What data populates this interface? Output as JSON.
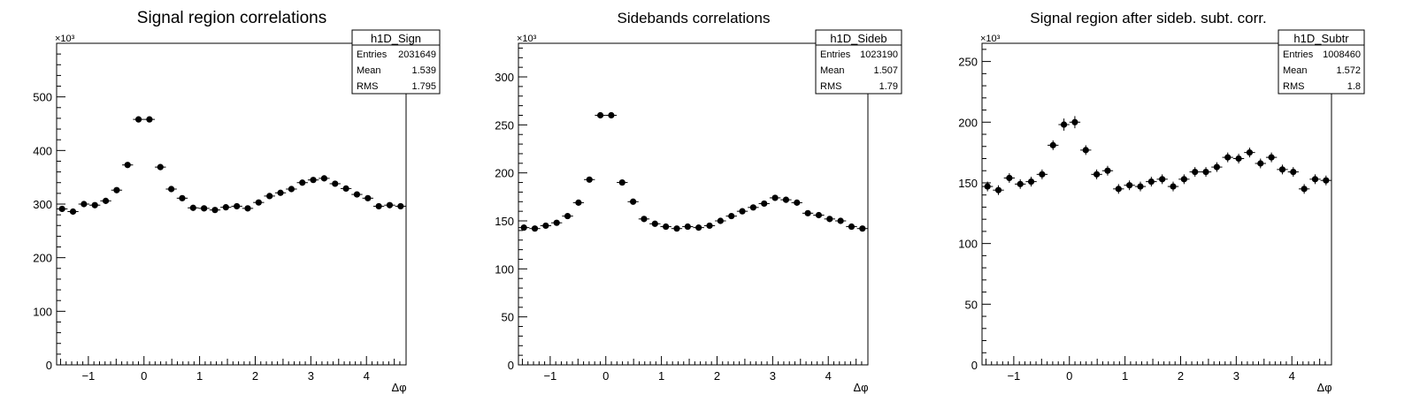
{
  "chart_data": [
    {
      "type": "scatter",
      "title": "Signal region correlations",
      "xlabel": "Δφ",
      "ylabel": "",
      "exponent_label": "×10³",
      "xlim": [
        -1.5708,
        4.7124
      ],
      "ylim": [
        0,
        600
      ],
      "xticks": [
        -1,
        0,
        1,
        2,
        3,
        4
      ],
      "yticks": [
        0,
        100,
        200,
        300,
        400,
        500
      ],
      "stats": {
        "name": "h1D_Sign",
        "rows": [
          [
            "Entries",
            "2031649"
          ],
          [
            "Mean",
            "1.539"
          ],
          [
            "RMS",
            "1.795"
          ]
        ]
      },
      "values": [
        291,
        286,
        300,
        298,
        306,
        326,
        373,
        458,
        458,
        369,
        328,
        311,
        293,
        292,
        289,
        294,
        296,
        292,
        303,
        315,
        321,
        328,
        340,
        345,
        348,
        338,
        329,
        318,
        311,
        296,
        298,
        296
      ]
    },
    {
      "type": "scatter",
      "title": "Sidebands correlations",
      "xlabel": "Δφ",
      "ylabel": "",
      "exponent_label": "×10³",
      "xlim": [
        -1.5708,
        4.7124
      ],
      "ylim": [
        0,
        335
      ],
      "xticks": [
        -1,
        0,
        1,
        2,
        3,
        4
      ],
      "yticks": [
        0,
        50,
        100,
        150,
        200,
        250,
        300
      ],
      "stats": {
        "name": "h1D_Sideb",
        "rows": [
          [
            "Entries",
            "1023190"
          ],
          [
            "Mean",
            "1.507"
          ],
          [
            "RMS",
            "1.79"
          ]
        ]
      },
      "values": [
        143,
        142,
        145,
        148,
        155,
        169,
        193,
        260,
        260,
        190,
        170,
        152,
        147,
        144,
        142,
        144,
        143,
        145,
        150,
        155,
        160,
        164,
        168,
        174,
        172,
        169,
        158,
        156,
        152,
        150,
        144,
        142
      ]
    },
    {
      "type": "scatter",
      "title": "Signal region after sideb. subt. corr.",
      "xlabel": "Δφ",
      "ylabel": "",
      "exponent_label": "×10³",
      "xlim": [
        -1.5708,
        4.7124
      ],
      "ylim": [
        0,
        265
      ],
      "xticks": [
        -1,
        0,
        1,
        2,
        3,
        4
      ],
      "yticks": [
        0,
        50,
        100,
        150,
        200,
        250
      ],
      "stats": {
        "name": "h1D_Subtr",
        "rows": [
          [
            "Entries",
            "1008460"
          ],
          [
            "Mean",
            "1.572"
          ],
          [
            "RMS",
            "1.8"
          ]
        ]
      },
      "values": [
        147,
        144,
        154,
        149,
        151,
        157,
        181,
        198,
        200,
        177,
        157,
        160,
        145,
        148,
        147,
        151,
        153,
        147,
        153,
        159,
        159,
        163,
        171,
        170,
        175,
        166,
        171,
        161,
        159,
        145,
        153,
        152
      ],
      "errors": [
        4,
        4,
        4,
        4,
        4,
        4,
        4,
        5,
        5,
        4,
        4,
        4,
        4,
        4,
        4,
        4,
        4,
        4,
        4,
        4,
        4,
        4,
        4,
        4,
        4,
        4,
        4,
        4,
        4,
        4,
        4,
        4
      ]
    }
  ]
}
